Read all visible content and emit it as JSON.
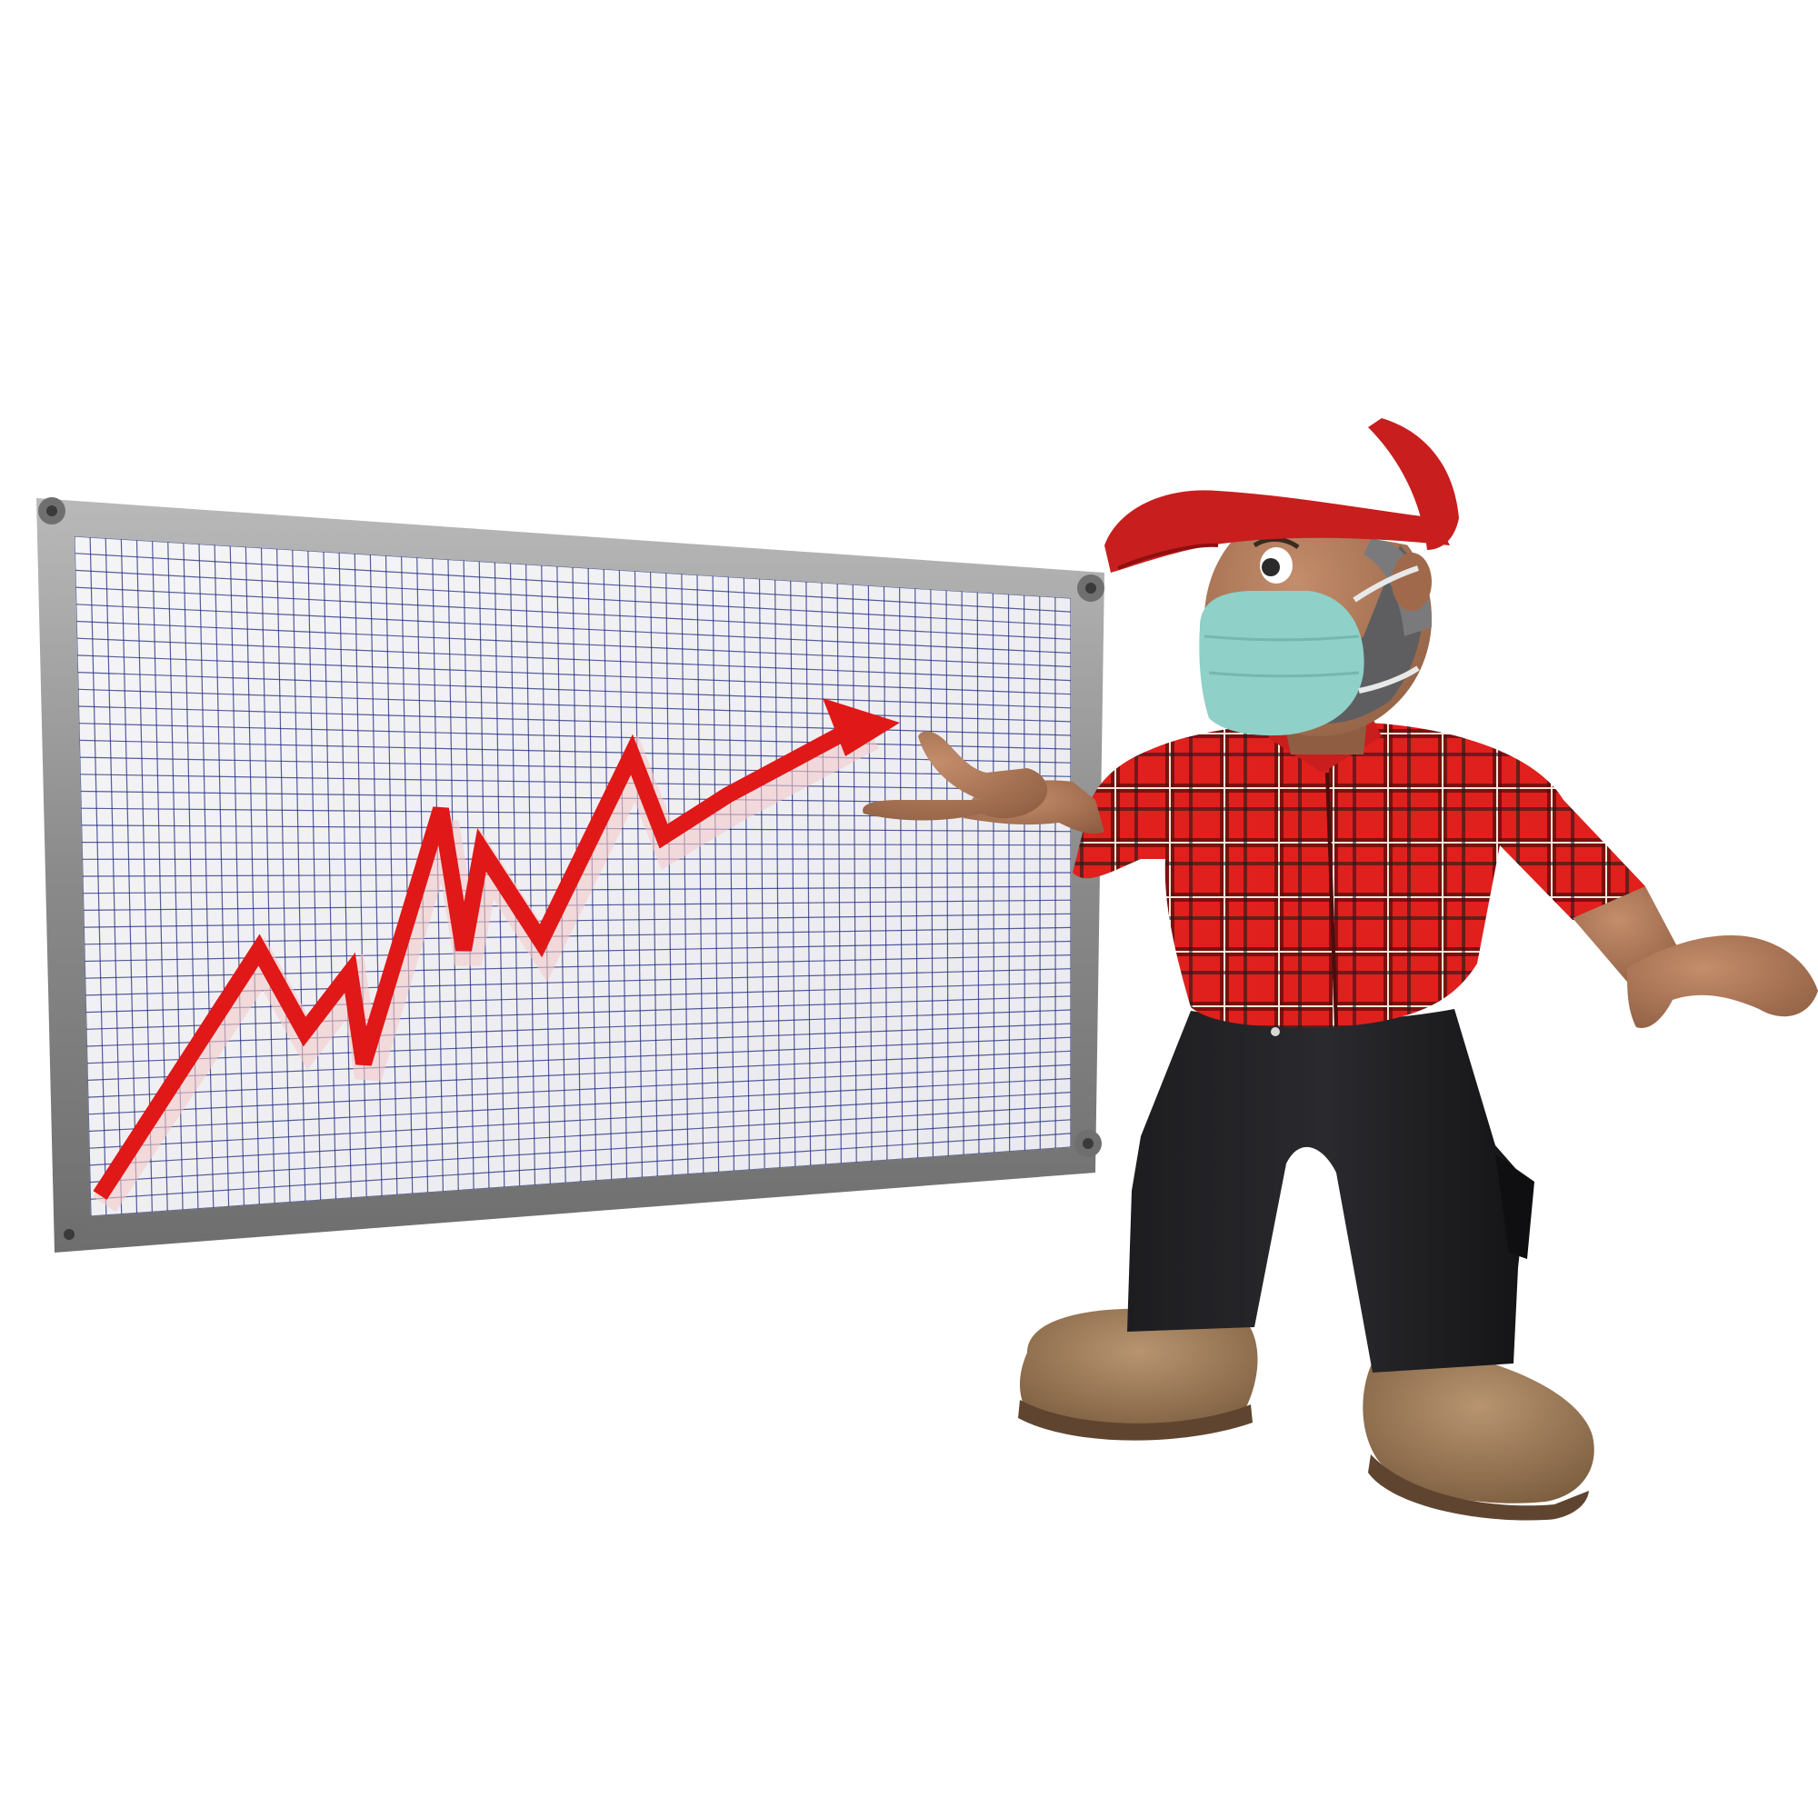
{
  "scene": {
    "background_color": "#ffffff",
    "board": {
      "frame_color": "#8a8a8a",
      "surface_color": "#f2f2f4",
      "grid_color": "#1f2a7a",
      "bolt_color": "#6f6f6f"
    },
    "trend_arrow": {
      "color": "#e01818",
      "direction": "rising"
    },
    "character": {
      "description_icon": "worker-with-face-mask",
      "cap_colors": [
        "#ffffff",
        "#c81e1e"
      ],
      "mask_color": "#8fd0c8",
      "shirt_pattern": "red-plaid",
      "shirt_color": "#e0201c",
      "pants_color": "#1a1a1c",
      "boots_color": "#9c7a55",
      "skin_color": "#b07a5a"
    }
  }
}
